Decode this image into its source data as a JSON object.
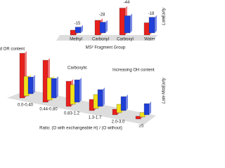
{
  "chart_data": [
    {
      "type": "bar",
      "x_label": "MS² Fragment Group",
      "categories": [
        "Methyl",
        "Carbonyl",
        "Carboxyl",
        "Water"
      ],
      "series": [
        {
          "name": "Early",
          "color": "#e8201c",
          "values": [
            10,
            30,
            55,
            25
          ]
        },
        {
          "name": "Late",
          "color": "#1f3fd8",
          "values": [
            12,
            22,
            35,
            32
          ]
        }
      ],
      "change_labels": [
        -15,
        -28,
        -44,
        -18
      ]
    },
    {
      "type": "bar",
      "x_label": "Ratio: (O with exchangeable H) / (O without)",
      "categories": [
        "0.0-0.40",
        "0.44-0.80",
        "0.83-1.2",
        "1.3-1.7",
        "2.0-3.0",
        "≥5"
      ],
      "series": [
        {
          "name": "Early",
          "color": "#e8201c",
          "values": [
            80,
            75,
            45,
            20,
            10,
            5
          ]
        },
        {
          "name": "Mid",
          "color": "#f2e21a",
          "values": [
            35,
            40,
            35,
            25,
            15,
            8
          ]
        },
        {
          "name": "Late",
          "color": "#1f3fd8",
          "values": [
            30,
            35,
            40,
            30,
            25,
            20
          ]
        }
      ],
      "annotations": [
        "Increasing C=O and OR content",
        "Carboxylic",
        "Increasing OH content"
      ]
    }
  ]
}
